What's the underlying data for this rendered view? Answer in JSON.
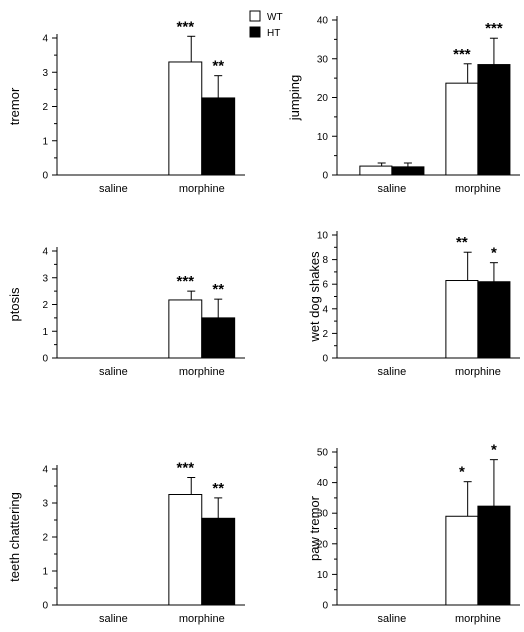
{
  "legend": {
    "items": [
      {
        "label": "WT",
        "color": "#ffffff"
      },
      {
        "label": "HT",
        "color": "#000000"
      }
    ]
  },
  "chart_data": [
    {
      "type": "bar",
      "ylabel": "tremor",
      "categories": [
        "saline",
        "morphine"
      ],
      "ylim": [
        0,
        4
      ],
      "yticks": [
        0,
        1,
        2,
        3,
        4
      ],
      "series": [
        {
          "name": "WT",
          "values": [
            0,
            3.3
          ],
          "errors": [
            0,
            0.75
          ],
          "stars": [
            "",
            "***"
          ]
        },
        {
          "name": "HT",
          "values": [
            0,
            2.25
          ],
          "errors": [
            0,
            0.65
          ],
          "stars": [
            "",
            "**"
          ]
        }
      ]
    },
    {
      "type": "bar",
      "ylabel": "jumping",
      "categories": [
        "saline",
        "morphine"
      ],
      "ylim": [
        0,
        40
      ],
      "yticks": [
        0,
        10,
        20,
        30,
        40
      ],
      "series": [
        {
          "name": "WT",
          "values": [
            2.3,
            23.7
          ],
          "errors": [
            0.8,
            5.0
          ],
          "stars": [
            "",
            "***"
          ]
        },
        {
          "name": "HT",
          "values": [
            2.1,
            28.5
          ],
          "errors": [
            1.0,
            6.8
          ],
          "stars": [
            "",
            "***"
          ]
        }
      ]
    },
    {
      "type": "bar",
      "ylabel": "ptosis",
      "categories": [
        "saline",
        "morphine"
      ],
      "ylim": [
        0,
        4
      ],
      "yticks": [
        0,
        1,
        2,
        3,
        4
      ],
      "series": [
        {
          "name": "WT",
          "values": [
            0,
            2.17
          ],
          "errors": [
            0,
            0.33
          ],
          "stars": [
            "",
            "***"
          ]
        },
        {
          "name": "HT",
          "values": [
            0,
            1.5
          ],
          "errors": [
            0,
            0.7
          ],
          "stars": [
            "",
            "**"
          ]
        }
      ]
    },
    {
      "type": "bar",
      "ylabel": "wet dog shakes",
      "categories": [
        "saline",
        "morphine"
      ],
      "ylim": [
        0,
        10
      ],
      "yticks": [
        0,
        2,
        4,
        6,
        8,
        10
      ],
      "series": [
        {
          "name": "WT",
          "values": [
            0,
            6.3
          ],
          "errors": [
            0,
            2.3
          ],
          "stars": [
            "",
            "**"
          ]
        },
        {
          "name": "HT",
          "values": [
            0,
            6.2
          ],
          "errors": [
            0,
            1.55
          ],
          "stars": [
            "",
            "*"
          ]
        }
      ]
    },
    {
      "type": "bar",
      "ylabel": "teeth chattering",
      "categories": [
        "saline",
        "morphine"
      ],
      "ylim": [
        0,
        4
      ],
      "yticks": [
        0,
        1,
        2,
        3,
        4
      ],
      "series": [
        {
          "name": "WT",
          "values": [
            0,
            3.25
          ],
          "errors": [
            0,
            0.5
          ],
          "stars": [
            "",
            "***"
          ]
        },
        {
          "name": "HT",
          "values": [
            0,
            2.55
          ],
          "errors": [
            0,
            0.6
          ],
          "stars": [
            "",
            "**"
          ]
        }
      ]
    },
    {
      "type": "bar",
      "ylabel": "paw tremor",
      "categories": [
        "saline",
        "morphine"
      ],
      "ylim": [
        0,
        50
      ],
      "yticks": [
        0,
        10,
        20,
        30,
        40,
        50
      ],
      "series": [
        {
          "name": "WT",
          "values": [
            0,
            29
          ],
          "errors": [
            0,
            11.3
          ],
          "stars": [
            "",
            "*"
          ]
        },
        {
          "name": "HT",
          "values": [
            0,
            32.3
          ],
          "errors": [
            0,
            15.2
          ],
          "stars": [
            "",
            "*"
          ]
        }
      ]
    }
  ]
}
